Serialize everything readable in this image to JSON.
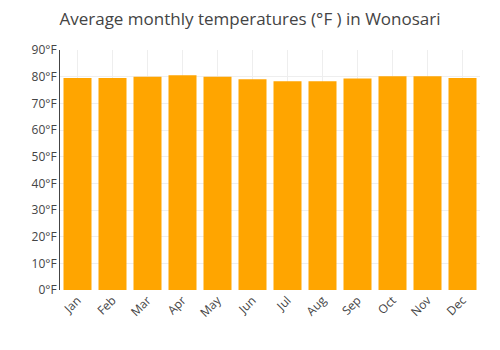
{
  "chart_data": {
    "type": "bar",
    "title": "Average monthly temperatures (°F ) in Wonosari",
    "categories": [
      "Jan",
      "Feb",
      "Mar",
      "Apr",
      "May",
      "Jun",
      "Jul",
      "Aug",
      "Sep",
      "Oct",
      "Nov",
      "Dec"
    ],
    "values": [
      79.5,
      79.5,
      80.0,
      80.5,
      80.0,
      79.0,
      78.3,
      78.3,
      79.3,
      80.2,
      80.2,
      79.5
    ],
    "color": "#FFA500",
    "ylim": [
      0,
      90
    ],
    "yticks": [
      {
        "value": 0,
        "label": "0°F"
      },
      {
        "value": 10,
        "label": "10°F"
      },
      {
        "value": 20,
        "label": "20°F"
      },
      {
        "value": 30,
        "label": "30°F"
      },
      {
        "value": 40,
        "label": "40°F"
      },
      {
        "value": 50,
        "label": "50°F"
      },
      {
        "value": 60,
        "label": "60°F"
      },
      {
        "value": 70,
        "label": "70°F"
      },
      {
        "value": 80,
        "label": "80°F"
      },
      {
        "value": 90,
        "label": "90°F"
      }
    ],
    "grid": true
  }
}
